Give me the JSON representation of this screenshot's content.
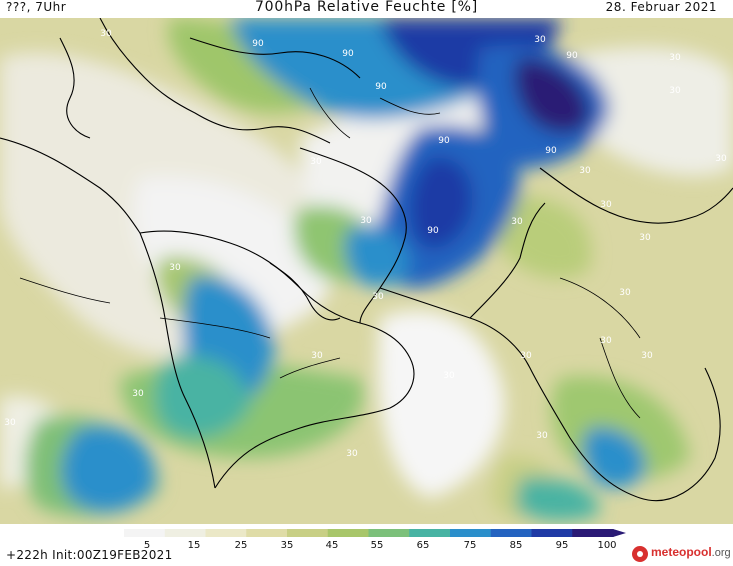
{
  "header": {
    "location": "???, 7Uhr",
    "title": "700hPa Relative Feuchte [%]",
    "date": "28. Februar 2021"
  },
  "footer": {
    "run_info": "+222h Init:00Z19FEB2021",
    "logo_brand": "meteopool",
    "logo_tld": ".org"
  },
  "colorbar": {
    "tick_labels": [
      "5",
      "15",
      "25",
      "35",
      "45",
      "55",
      "65",
      "75",
      "85",
      "95",
      "100"
    ],
    "colors": [
      "#f4f4f4",
      "#efefe2",
      "#ebe8c7",
      "#dfdca7",
      "#c8cf85",
      "#a8c66a",
      "#7cc07a",
      "#48b3a3",
      "#2b8fcb",
      "#2463c0",
      "#1f3aa5",
      "#2a1a75"
    ]
  },
  "contour_labels": [
    {
      "text": "90"
    },
    {
      "text": "90"
    },
    {
      "text": "90"
    },
    {
      "text": "90"
    },
    {
      "text": "90"
    },
    {
      "text": "90"
    },
    {
      "text": "90"
    },
    {
      "text": "30"
    },
    {
      "text": "30"
    },
    {
      "text": "30"
    },
    {
      "text": "30"
    },
    {
      "text": "30"
    },
    {
      "text": "30"
    },
    {
      "text": "30"
    },
    {
      "text": "30"
    },
    {
      "text": "30"
    },
    {
      "text": "30"
    },
    {
      "text": "30"
    },
    {
      "text": "30"
    },
    {
      "text": "30"
    },
    {
      "text": "30"
    },
    {
      "text": "30"
    },
    {
      "text": "30"
    },
    {
      "text": "30"
    },
    {
      "text": "30"
    },
    {
      "text": "30"
    },
    {
      "text": "30"
    },
    {
      "text": "30"
    },
    {
      "text": "30"
    },
    {
      "text": "30"
    }
  ]
}
